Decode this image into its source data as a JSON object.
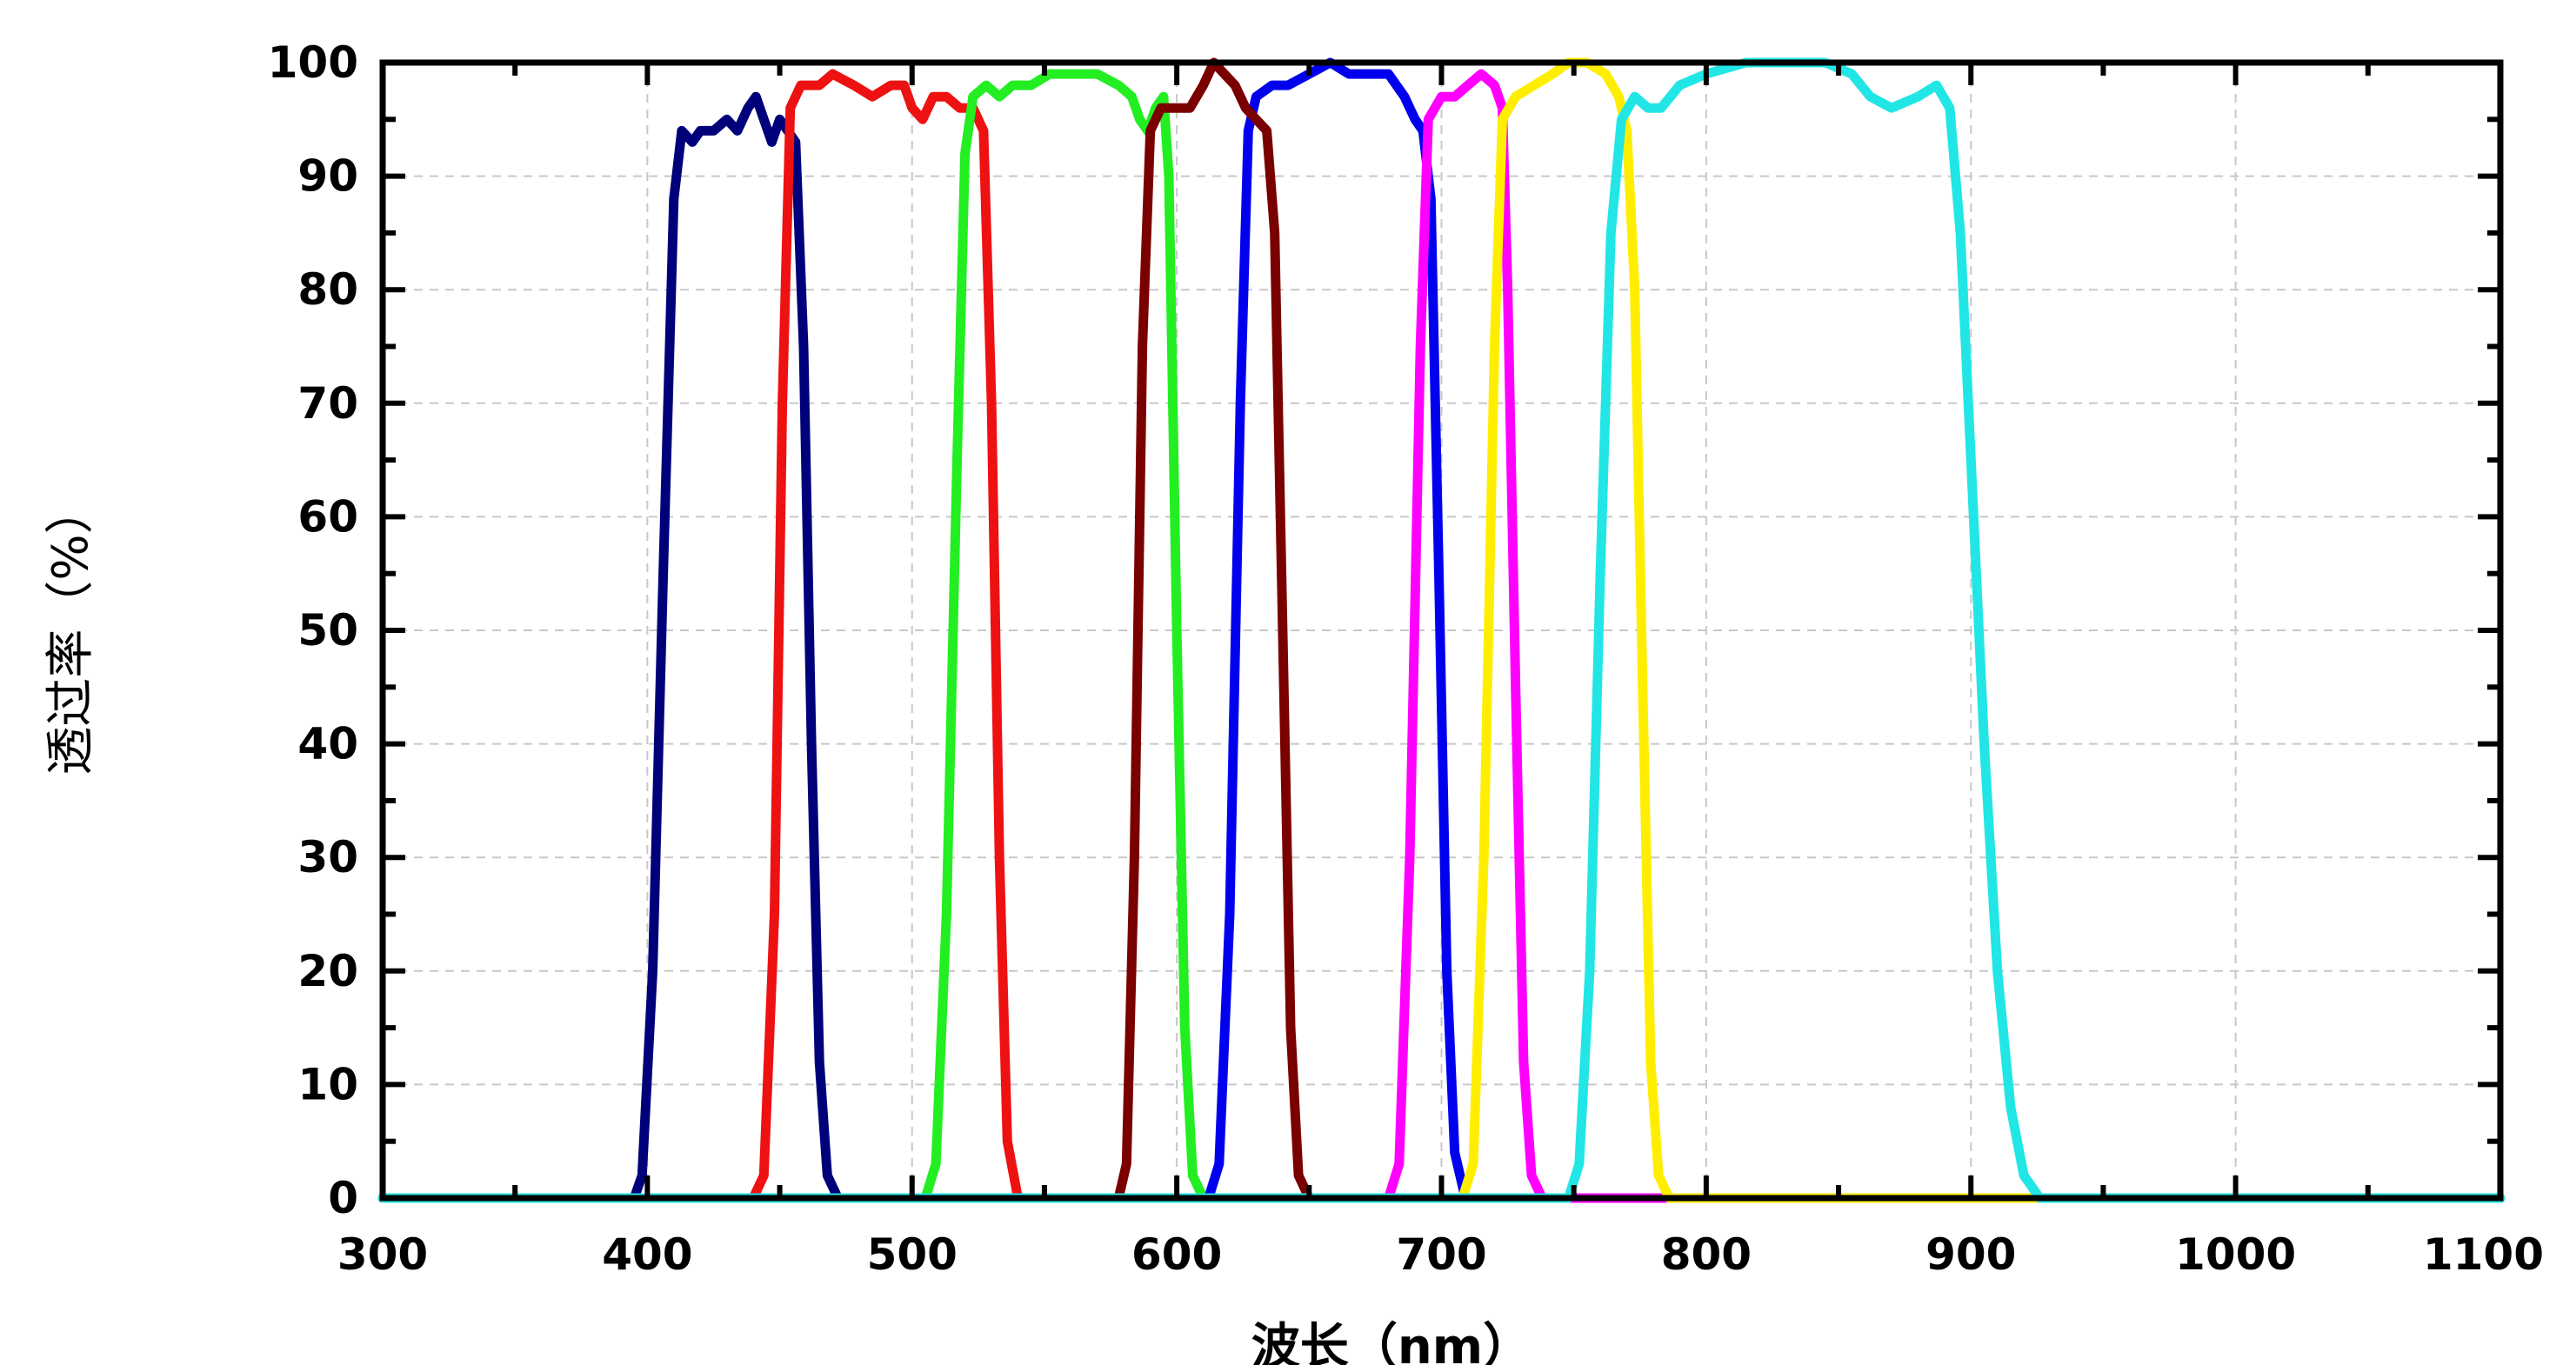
{
  "chart_data": {
    "type": "line",
    "title": "",
    "xlabel": "波长（nm）",
    "ylabel": "透过率（%）",
    "xlim": [
      300,
      1100
    ],
    "ylim": [
      0,
      100
    ],
    "x_ticks": [
      300,
      400,
      500,
      600,
      700,
      800,
      900,
      1000,
      1100
    ],
    "y_ticks": [
      0,
      10,
      20,
      30,
      40,
      50,
      60,
      70,
      80,
      90,
      100
    ],
    "grid": true,
    "legend": "none",
    "series": [
      {
        "color": "#00007a",
        "points": [
          [
            300,
            0
          ],
          [
            395,
            0
          ],
          [
            398,
            2
          ],
          [
            402,
            20
          ],
          [
            406,
            55
          ],
          [
            410,
            88
          ],
          [
            413,
            94
          ],
          [
            417,
            93
          ],
          [
            420,
            94
          ],
          [
            425,
            94
          ],
          [
            430,
            95
          ],
          [
            434,
            94
          ],
          [
            438,
            96
          ],
          [
            441,
            97
          ],
          [
            444,
            95
          ],
          [
            447,
            93
          ],
          [
            450,
            95
          ],
          [
            453,
            94
          ],
          [
            456,
            93
          ],
          [
            459,
            75
          ],
          [
            462,
            40
          ],
          [
            465,
            12
          ],
          [
            468,
            2
          ],
          [
            472,
            0
          ],
          [
            1100,
            0
          ]
        ]
      },
      {
        "color": "#ee1111",
        "points": [
          [
            300,
            0
          ],
          [
            440,
            0
          ],
          [
            444,
            2
          ],
          [
            448,
            25
          ],
          [
            451,
            70
          ],
          [
            454,
            96
          ],
          [
            458,
            98
          ],
          [
            465,
            98
          ],
          [
            470,
            99
          ],
          [
            478,
            98
          ],
          [
            485,
            97
          ],
          [
            492,
            98
          ],
          [
            497,
            98
          ],
          [
            500,
            96
          ],
          [
            504,
            95
          ],
          [
            508,
            97
          ],
          [
            513,
            97
          ],
          [
            518,
            96
          ],
          [
            523,
            96
          ],
          [
            527,
            94
          ],
          [
            530,
            70
          ],
          [
            533,
            30
          ],
          [
            536,
            5
          ],
          [
            540,
            0
          ],
          [
            1100,
            0
          ]
        ]
      },
      {
        "color": "#22ee22",
        "points": [
          [
            300,
            0
          ],
          [
            505,
            0
          ],
          [
            509,
            3
          ],
          [
            513,
            25
          ],
          [
            517,
            65
          ],
          [
            520,
            92
          ],
          [
            523,
            97
          ],
          [
            528,
            98
          ],
          [
            533,
            97
          ],
          [
            538,
            98
          ],
          [
            545,
            98
          ],
          [
            552,
            99
          ],
          [
            560,
            99
          ],
          [
            570,
            99
          ],
          [
            578,
            98
          ],
          [
            583,
            97
          ],
          [
            586,
            95
          ],
          [
            589,
            94
          ],
          [
            592,
            96
          ],
          [
            595,
            97
          ],
          [
            597,
            90
          ],
          [
            600,
            50
          ],
          [
            603,
            15
          ],
          [
            606,
            2
          ],
          [
            610,
            0
          ],
          [
            1100,
            0
          ]
        ]
      },
      {
        "color": "#0000ee",
        "points": [
          [
            300,
            0
          ],
          [
            612,
            0
          ],
          [
            616,
            3
          ],
          [
            620,
            25
          ],
          [
            624,
            70
          ],
          [
            627,
            94
          ],
          [
            630,
            97
          ],
          [
            636,
            98
          ],
          [
            642,
            98
          ],
          [
            650,
            99
          ],
          [
            658,
            100
          ],
          [
            665,
            99
          ],
          [
            672,
            99
          ],
          [
            680,
            99
          ],
          [
            686,
            97
          ],
          [
            690,
            95
          ],
          [
            693,
            94
          ],
          [
            696,
            88
          ],
          [
            699,
            55
          ],
          [
            702,
            20
          ],
          [
            705,
            4
          ],
          [
            709,
            0
          ],
          [
            1100,
            0
          ]
        ]
      },
      {
        "color": "#7a0000",
        "points": [
          [
            300,
            0
          ],
          [
            578,
            0
          ],
          [
            581,
            3
          ],
          [
            584,
            30
          ],
          [
            587,
            75
          ],
          [
            590,
            94
          ],
          [
            594,
            96
          ],
          [
            600,
            96
          ],
          [
            605,
            96
          ],
          [
            610,
            98
          ],
          [
            614,
            100
          ],
          [
            618,
            99
          ],
          [
            622,
            98
          ],
          [
            626,
            96
          ],
          [
            630,
            95
          ],
          [
            634,
            94
          ],
          [
            637,
            85
          ],
          [
            640,
            50
          ],
          [
            643,
            15
          ],
          [
            646,
            2
          ],
          [
            650,
            0
          ],
          [
            1100,
            0
          ]
        ]
      },
      {
        "color": "#ff00ff",
        "points": [
          [
            300,
            0
          ],
          [
            680,
            0
          ],
          [
            684,
            3
          ],
          [
            688,
            30
          ],
          [
            692,
            75
          ],
          [
            695,
            95
          ],
          [
            700,
            97
          ],
          [
            705,
            97
          ],
          [
            710,
            98
          ],
          [
            715,
            99
          ],
          [
            720,
            98
          ],
          [
            723,
            96
          ],
          [
            725,
            80
          ],
          [
            728,
            45
          ],
          [
            731,
            12
          ],
          [
            734,
            2
          ],
          [
            738,
            0
          ],
          [
            1100,
            0
          ]
        ]
      },
      {
        "color": "#ffee00",
        "points": [
          [
            300,
            0
          ],
          [
            708,
            0
          ],
          [
            712,
            3
          ],
          [
            716,
            30
          ],
          [
            720,
            75
          ],
          [
            723,
            95
          ],
          [
            728,
            97
          ],
          [
            735,
            98
          ],
          [
            742,
            99
          ],
          [
            748,
            100
          ],
          [
            755,
            100
          ],
          [
            762,
            99
          ],
          [
            767,
            97
          ],
          [
            770,
            94
          ],
          [
            773,
            80
          ],
          [
            776,
            45
          ],
          [
            779,
            12
          ],
          [
            782,
            2
          ],
          [
            786,
            0
          ],
          [
            1100,
            0
          ]
        ]
      },
      {
        "color": "#22e6e6",
        "points": [
          [
            300,
            0
          ],
          [
            748,
            0
          ],
          [
            752,
            3
          ],
          [
            756,
            20
          ],
          [
            760,
            55
          ],
          [
            764,
            85
          ],
          [
            768,
            95
          ],
          [
            773,
            97
          ],
          [
            778,
            96
          ],
          [
            783,
            96
          ],
          [
            790,
            98
          ],
          [
            800,
            99
          ],
          [
            815,
            100
          ],
          [
            830,
            100
          ],
          [
            845,
            100
          ],
          [
            855,
            99
          ],
          [
            862,
            97
          ],
          [
            870,
            96
          ],
          [
            880,
            97
          ],
          [
            887,
            98
          ],
          [
            892,
            96
          ],
          [
            896,
            85
          ],
          [
            900,
            65
          ],
          [
            905,
            40
          ],
          [
            910,
            20
          ],
          [
            915,
            8
          ],
          [
            920,
            2
          ],
          [
            926,
            0
          ],
          [
            1100,
            0
          ]
        ]
      }
    ]
  }
}
